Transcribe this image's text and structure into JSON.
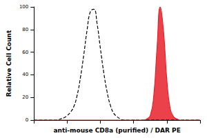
{
  "chart_data": {
    "type": "line",
    "x_label": "anti-mouse CD8a (purified) / DAR PE",
    "y_label": "Relative Cell Count",
    "x": [
      0,
      2,
      4,
      6,
      8,
      10,
      12,
      14,
      16,
      18,
      20,
      22,
      24,
      26,
      28,
      30,
      32,
      34,
      36,
      38,
      40,
      42,
      44,
      46,
      48,
      50,
      52,
      54,
      56,
      58,
      60,
      62,
      64,
      66,
      68,
      70,
      72,
      74,
      76,
      78,
      80,
      82,
      84,
      86,
      88,
      90,
      92,
      94,
      96,
      98,
      100
    ],
    "series": [
      {
        "type": "line",
        "color": "#000000",
        "line_style": "dashed",
        "values": [
          0,
          0,
          0,
          0,
          0,
          0,
          0,
          0,
          1,
          2,
          4,
          7,
          12,
          22,
          38,
          58,
          80,
          96,
          98,
          85,
          63,
          42,
          25,
          13,
          6,
          3,
          1,
          0,
          0,
          0,
          0,
          0,
          0,
          0,
          0,
          0,
          0,
          0,
          0,
          0,
          0,
          0,
          0,
          0,
          0,
          0,
          0,
          0,
          0,
          0,
          0
        ]
      },
      {
        "type": "area",
        "color": "#e8202a",
        "line_style": "solid",
        "values": [
          0,
          0,
          0,
          0,
          0,
          0,
          0,
          0,
          0,
          0,
          0,
          0,
          0,
          0,
          0,
          0,
          0,
          0,
          0,
          0,
          0,
          0,
          0,
          0,
          0,
          0,
          0,
          0,
          0,
          0,
          0,
          0,
          0,
          0,
          1,
          4,
          20,
          62,
          100,
          78,
          35,
          10,
          3,
          1,
          0,
          0,
          0,
          0,
          0,
          0,
          0
        ]
      }
    ],
    "xlim": [
      0,
      100
    ],
    "xticks": [
      0,
      20,
      40,
      60,
      80,
      100
    ],
    "ylim": [
      0,
      100
    ],
    "yticks": [
      0,
      20,
      40,
      60,
      80,
      100
    ],
    "grid": false,
    "tick_labels": "y"
  }
}
